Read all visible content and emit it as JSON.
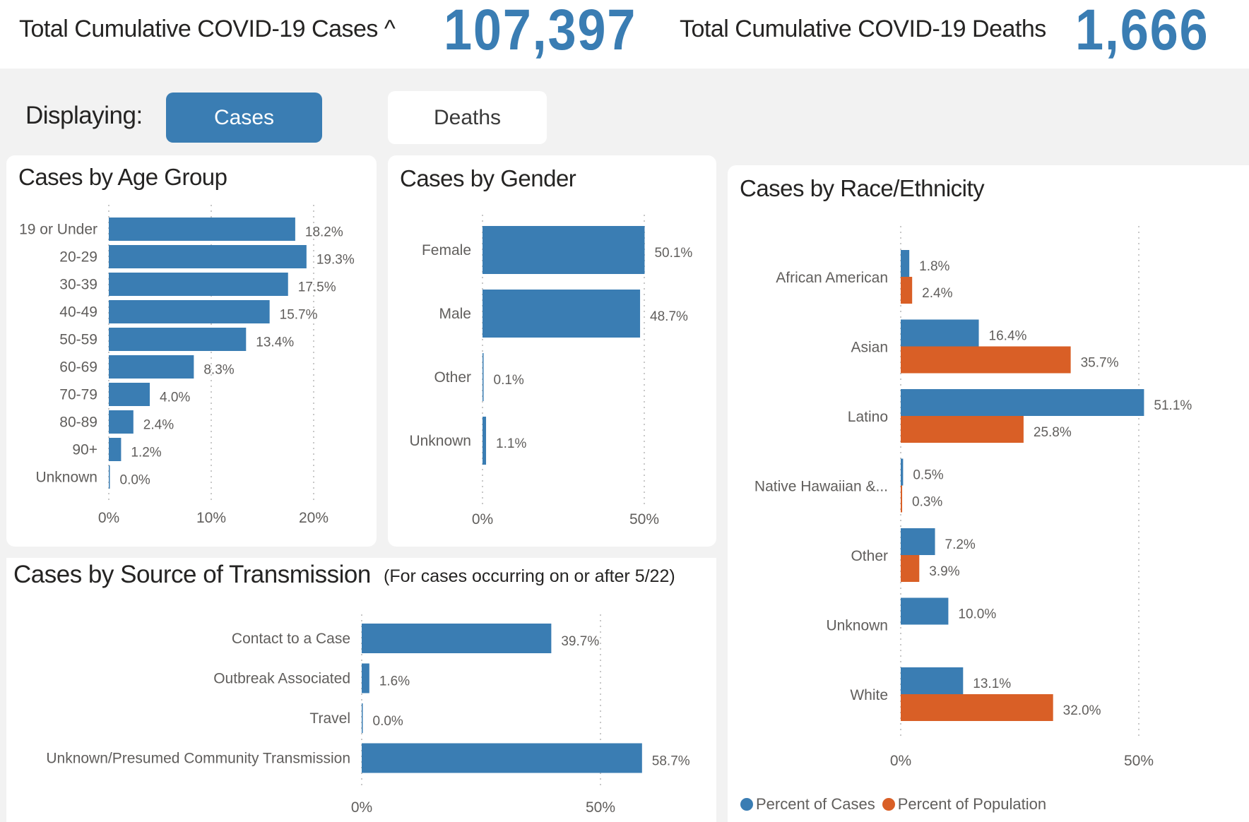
{
  "header": {
    "cases_label": "Total Cumulative COVID-19 Cases ^",
    "cases_value": "107,397",
    "deaths_label": "Total Cumulative COVID-19 Deaths",
    "deaths_value": "1,666"
  },
  "toggle": {
    "label": "Displaying:",
    "options": [
      {
        "label": "Cases",
        "active": true
      },
      {
        "label": "Deaths",
        "active": false
      }
    ]
  },
  "colors": {
    "accent": "#3a7db3",
    "cases": "#3a7db3",
    "population": "#d95f26"
  },
  "chart_data": [
    {
      "id": "age",
      "type": "bar",
      "orientation": "horizontal",
      "title": "Cases by Age Group",
      "categories": [
        "19 or Under",
        "20-29",
        "30-39",
        "40-49",
        "50-59",
        "60-69",
        "70-79",
        "80-89",
        "90+",
        "Unknown"
      ],
      "values": [
        18.2,
        19.3,
        17.5,
        15.7,
        13.4,
        8.3,
        4.0,
        2.4,
        1.2,
        0.0
      ],
      "value_labels": [
        "18.2%",
        "19.3%",
        "17.5%",
        "15.7%",
        "13.4%",
        "8.3%",
        "4.0%",
        "2.4%",
        "1.2%",
        "0.0%"
      ],
      "xlim": [
        0,
        20
      ],
      "xticks": [
        0,
        10,
        20
      ],
      "xtick_labels": [
        "0%",
        "10%",
        "20%"
      ],
      "grid": true,
      "xlabel": "",
      "ylabel": ""
    },
    {
      "id": "gender",
      "type": "bar",
      "orientation": "horizontal",
      "title": "Cases by Gender",
      "categories": [
        "Female",
        "Male",
        "Other",
        "Unknown"
      ],
      "values": [
        50.1,
        48.7,
        0.1,
        1.1
      ],
      "value_labels": [
        "50.1%",
        "48.7%",
        "0.1%",
        "1.1%"
      ],
      "xlim": [
        0,
        50
      ],
      "xticks": [
        0,
        50
      ],
      "xtick_labels": [
        "0%",
        "50%"
      ],
      "grid": true,
      "xlabel": "",
      "ylabel": ""
    },
    {
      "id": "transmission",
      "type": "bar",
      "orientation": "horizontal",
      "title": "Cases by Source of Transmission",
      "subtitle": "(For cases occurring on or after 5/22)",
      "categories": [
        "Contact to a Case",
        "Outbreak Associated",
        "Travel",
        "Unknown/Presumed Community Transmission"
      ],
      "values": [
        39.7,
        1.6,
        0.0,
        58.7
      ],
      "value_labels": [
        "39.7%",
        "1.6%",
        "0.0%",
        "58.7%"
      ],
      "xlim": [
        0,
        50
      ],
      "xticks": [
        0,
        50
      ],
      "xtick_labels": [
        "0%",
        "50%"
      ],
      "grid": true,
      "xlabel": "",
      "ylabel": ""
    },
    {
      "id": "race",
      "type": "bar",
      "orientation": "horizontal",
      "title": "Cases by Race/Ethnicity",
      "categories": [
        "African American",
        "Asian",
        "Latino",
        "Native Hawaiian &...",
        "Other",
        "Unknown",
        "White"
      ],
      "series": [
        {
          "name": "Percent of Cases",
          "color": "#3a7db3",
          "values": [
            1.8,
            16.4,
            51.1,
            0.5,
            7.2,
            10.0,
            13.1
          ],
          "value_labels": [
            "1.8%",
            "16.4%",
            "51.1%",
            "0.5%",
            "7.2%",
            "10.0%",
            "13.1%"
          ]
        },
        {
          "name": "Percent of Population",
          "color": "#d95f26",
          "values": [
            2.4,
            35.7,
            25.8,
            0.3,
            3.9,
            null,
            32.0
          ],
          "value_labels": [
            "2.4%",
            "35.7%",
            "25.8%",
            "0.3%",
            "3.9%",
            "",
            "32.0%"
          ]
        }
      ],
      "xlim": [
        0,
        50
      ],
      "xticks": [
        0,
        50
      ],
      "xtick_labels": [
        "0%",
        "50%"
      ],
      "grid": true,
      "legend": "bottom-left",
      "xlabel": "",
      "ylabel": ""
    }
  ]
}
